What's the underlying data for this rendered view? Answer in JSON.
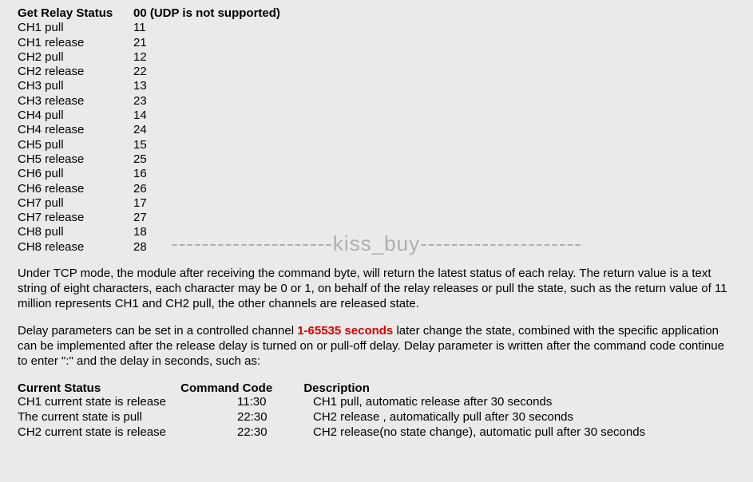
{
  "header": {
    "label": "Get Relay Status",
    "code": "00 (UDP is not supported)"
  },
  "relays": [
    {
      "name": "CH1 pull",
      "val": "11"
    },
    {
      "name": "CH1 release",
      "val": "21"
    },
    {
      "name": "CH2 pull",
      "val": " 12"
    },
    {
      "name": "CH2 release",
      "val": "22"
    },
    {
      "name": "CH3 pull",
      "val": "13"
    },
    {
      "name": "CH3 release",
      "val": "23"
    },
    {
      "name": "CH4 pull",
      "val": "14"
    },
    {
      "name": "CH4 release",
      "val": "24"
    },
    {
      "name": "CH5 pull",
      "val": "15"
    },
    {
      "name": "CH5 release",
      "val": "25"
    },
    {
      "name": "CH6 pull",
      "val": "16"
    },
    {
      "name": "CH6 release",
      "val": "26"
    },
    {
      "name": "CH7 pull",
      "val": "17"
    },
    {
      "name": "CH7 release",
      "val": "27"
    },
    {
      "name": "CH8 pull",
      "val": "18"
    },
    {
      "name": "CH8 release",
      "val": "28"
    }
  ],
  "para1": "Under TCP mode, the module after receiving the command byte, will return the latest status of each relay. The return value is a text string of eight characters, each character may be 0 or 1, on behalf of the relay releases or pull the state, such as the return value of 11 million represents CH1 and CH2 pull, the other channels are released state.",
  "para2_pre": "Delay parameters can be set in a controlled channel ",
  "para2_red": "1-65535 seconds",
  "para2_post": " later change the state, combined with the specific application can be implemented after the release delay is turned on or pull-off delay. Delay parameter is written after the command code continue to enter \":\" and the delay in seconds, such as:",
  "status_header": {
    "c1": "Current Status",
    "c2": "Command Code",
    "c3": "Description"
  },
  "status_rows": [
    {
      "c1": "CH1 current state is release",
      "c2": "11:30",
      "c3": "CH1 pull, automatic release after 30 seconds"
    },
    {
      "c1": "The current state is  pull",
      "c2": "22:30",
      "c3": "CH2 release , automatically pull after 30 seconds"
    },
    {
      "c1": "CH2 current state is release",
      "c2": "22:30",
      "c3": " CH2 release(no state change), automatic pull after 30 seconds"
    }
  ],
  "watermark": "---------------------kiss_buy---------------------"
}
